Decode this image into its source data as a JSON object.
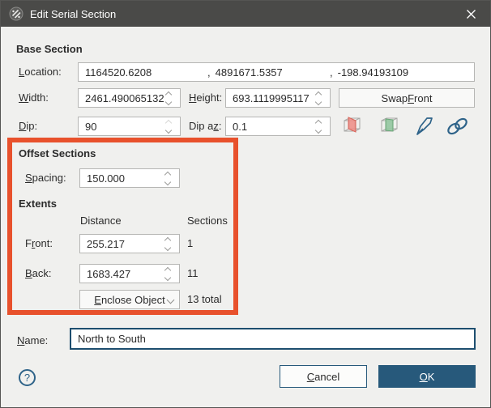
{
  "window": {
    "title": "Edit Serial Section"
  },
  "base_section": {
    "heading": "Base Section",
    "location": {
      "label": "Location:",
      "x": "1164520.6208",
      "separator": ",",
      "y": "4891671.5357",
      "z": "-198.94193109"
    },
    "width": {
      "label": "Width:",
      "value": "2461.490065132"
    },
    "height": {
      "label": "Height:",
      "value": "693.1119995117"
    },
    "swap_front_label": "Swap Front",
    "dip": {
      "label": "Dip:",
      "value": "90"
    },
    "dip_az": {
      "label": "Dip az:",
      "value": "0.1"
    },
    "icons": {
      "red_plane": "red-section-plane-cube-icon",
      "green_plane": "green-section-plane-cube-icon",
      "draw": "draw-pen-icon",
      "link": "link-chain-icon"
    }
  },
  "offset_sections": {
    "heading": "Offset Sections",
    "spacing": {
      "label": "Spacing:",
      "value": "150.000"
    }
  },
  "extents": {
    "heading": "Extents",
    "columns": {
      "distance": "Distance",
      "sections": "Sections"
    },
    "front": {
      "label": "Front:",
      "value": "255.217",
      "count": "1"
    },
    "back": {
      "label": "Back:",
      "value": "1683.427",
      "count": "11"
    },
    "mode": {
      "label": "Enclose Object",
      "total": "13 total"
    }
  },
  "name": {
    "label": "Name:",
    "value": "North to South"
  },
  "footer": {
    "help_label": "?",
    "cancel_label": "Cancel",
    "ok_label": "OK"
  },
  "colors": {
    "accent": "#27597b",
    "annotation": "#e8512c",
    "titlebar": "#4a4a48",
    "dialog_bg": "#f0f0ee"
  }
}
